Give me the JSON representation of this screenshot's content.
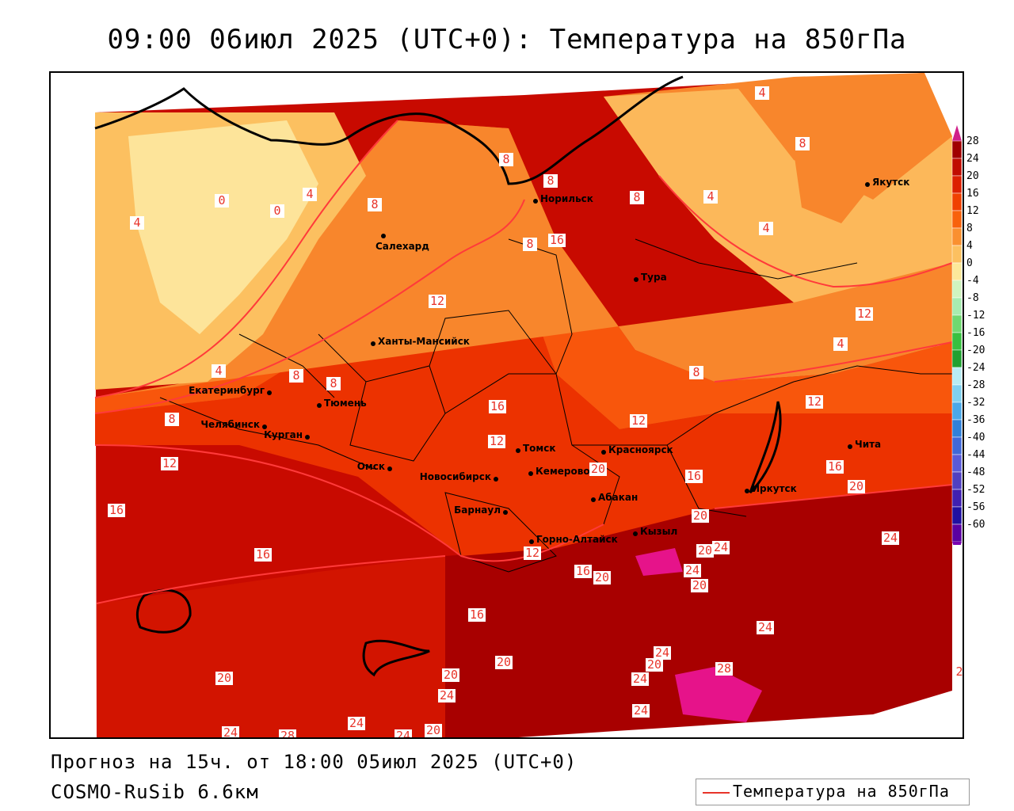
{
  "title": "09:00 06июл 2025 (UTC+0): Температура на 850гПа",
  "footer": {
    "forecast": "Прогноз на 15ч. от 18:00 05июл 2025 (UTC+0)",
    "model": "COSMO-RuSib 6.6км"
  },
  "legend": {
    "label": "Температура на 850гПа",
    "line_color": "#e8342a"
  },
  "colorbar": {
    "labels": [
      "28",
      "24",
      "20",
      "16",
      "12",
      "8",
      "4",
      "0",
      "-4",
      "-8",
      "-12",
      "-16",
      "-20",
      "-24",
      "-28",
      "-32",
      "-36",
      "-40",
      "-44",
      "-48",
      "-52",
      "-56",
      "-60"
    ],
    "colors": [
      "#a00000",
      "#c00c00",
      "#dc2000",
      "#f04000",
      "#f8620c",
      "#fa9030",
      "#fcc060",
      "#fce89a",
      "#d0f4c0",
      "#a8ecb0",
      "#70d870",
      "#38c040",
      "#20a030",
      "#b8ecf4",
      "#80d0f0",
      "#4aa8e8",
      "#3080d8",
      "#4068d8",
      "#5a5ad8",
      "#5040c0",
      "#4020b0",
      "#2010a0",
      "#5a00a0"
    ]
  },
  "cities": [
    {
      "name": "Салехард"
    },
    {
      "name": "Норильск"
    },
    {
      "name": "Якутск"
    },
    {
      "name": "Тура"
    },
    {
      "name": "Ханты-Мансийск"
    },
    {
      "name": "Екатеринбург"
    },
    {
      "name": "Тюмень"
    },
    {
      "name": "Челябинск"
    },
    {
      "name": "Курган"
    },
    {
      "name": "Омск"
    },
    {
      "name": "Новосибирск"
    },
    {
      "name": "Томск"
    },
    {
      "name": "Кемерово"
    },
    {
      "name": "Красноярск"
    },
    {
      "name": "Барнаул"
    },
    {
      "name": "Абакан"
    },
    {
      "name": "Горно-Алтайск"
    },
    {
      "name": "Кызыл"
    },
    {
      "name": "Иркутск"
    },
    {
      "name": "Чита"
    }
  ],
  "contour_labels": [
    "4",
    "8",
    "8",
    "8",
    "4",
    "4",
    "8",
    "4",
    "0",
    "0",
    "4",
    "8",
    "8",
    "16",
    "12",
    "12",
    "4",
    "8",
    "8",
    "4",
    "8",
    "12",
    "16",
    "12",
    "8",
    "12",
    "16",
    "20",
    "16",
    "12",
    "16",
    "16",
    "20",
    "16",
    "20",
    "24",
    "20",
    "24",
    "20",
    "24",
    "12",
    "20",
    "16",
    "16",
    "20",
    "20",
    "24",
    "24",
    "24",
    "20",
    "20",
    "24",
    "28",
    "24",
    "24",
    "28",
    "24",
    "24",
    "20",
    "2"
  ]
}
